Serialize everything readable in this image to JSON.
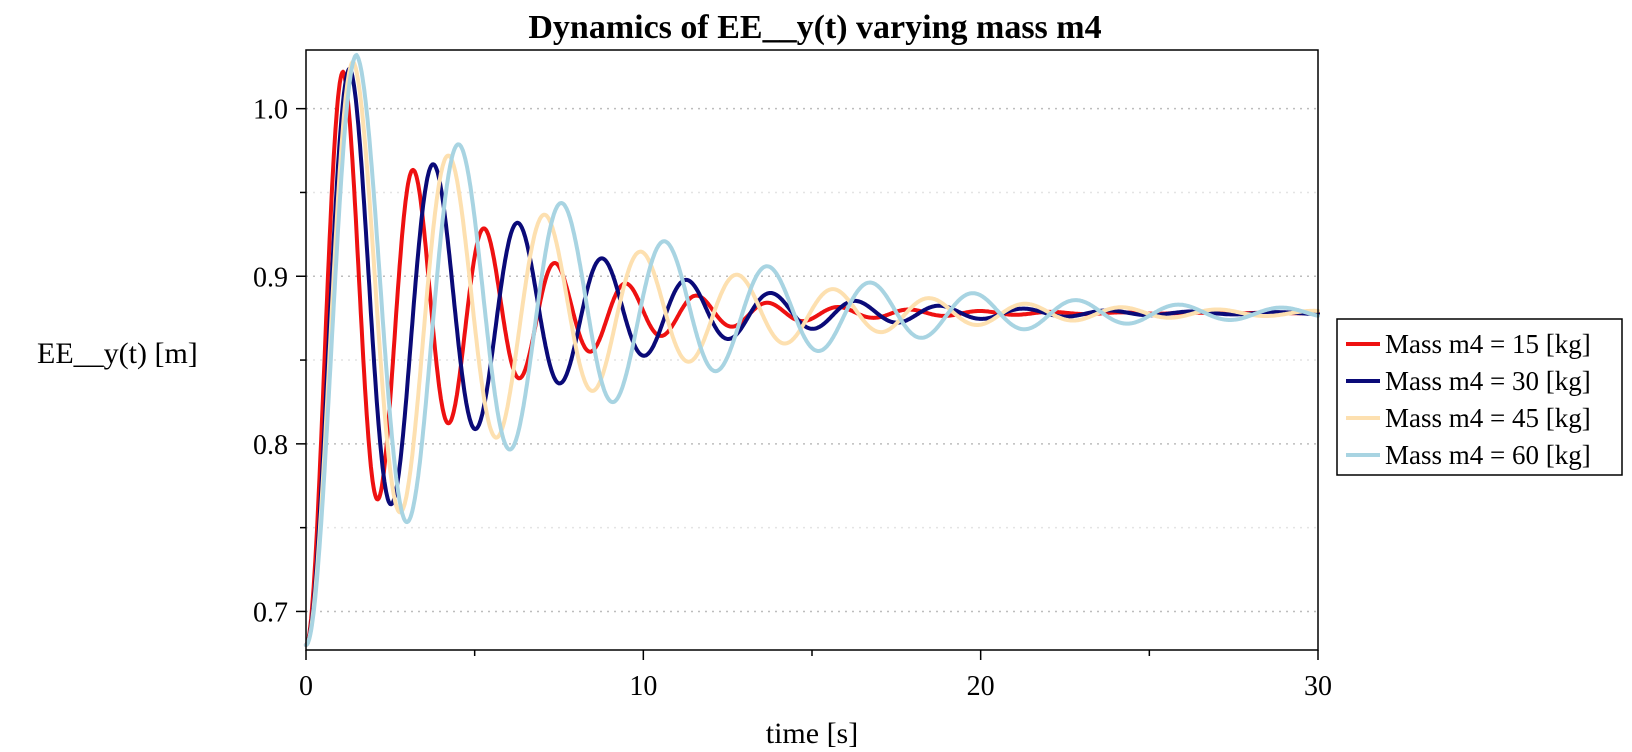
{
  "chart_data": {
    "type": "line",
    "title": "Dynamics of EE__y(t) varying mass m4",
    "xlabel": "time [s]",
    "ylabel": "EE__y(t) [m]",
    "xlim": [
      0,
      30
    ],
    "ylim": [
      0.677,
      1.035
    ],
    "x_ticks": [
      0,
      10,
      20,
      30
    ],
    "x_tick_labels": [
      "0",
      "10",
      "20",
      "30"
    ],
    "x_minor_ticks": [
      5,
      15,
      25
    ],
    "y_ticks": [
      0.7,
      0.8,
      0.9,
      1.0
    ],
    "y_tick_labels": [
      "0.7",
      "0.8",
      "0.9",
      "1.0"
    ],
    "y_minor_ticks": [
      0.75,
      0.85,
      0.95
    ],
    "grid": true,
    "legend_position": "right",
    "series": [
      {
        "name": "Mass m4 = 15 [kg]",
        "color": "#ee1111",
        "model": {
          "y0": 0.68,
          "final": 0.878,
          "first_peak_time": 1.1,
          "first_peak": 1.022,
          "period": 2.1,
          "decay": 0.25
        },
        "peaks": [
          [
            1.1,
            1.022
          ],
          [
            2.0,
            0.764
          ],
          [
            3.2,
            0.96
          ],
          [
            4.2,
            0.812
          ],
          [
            5.3,
            0.926
          ],
          [
            6.3,
            0.84
          ],
          [
            7.4,
            0.906
          ],
          [
            8.4,
            0.856
          ],
          [
            9.5,
            0.894
          ],
          [
            10.5,
            0.865
          ]
        ]
      },
      {
        "name": "Mass m4 = 30 [kg]",
        "color": "#0a0a78",
        "model": {
          "y0": 0.68,
          "final": 0.878,
          "first_peak_time": 1.3,
          "first_peak": 1.024,
          "period": 2.5,
          "decay": 0.2
        },
        "peaks": [
          [
            1.3,
            1.024
          ],
          [
            2.5,
            0.756
          ],
          [
            3.8,
            0.97
          ],
          [
            5.0,
            0.802
          ],
          [
            6.3,
            0.936
          ],
          [
            7.5,
            0.832
          ],
          [
            8.8,
            0.914
          ],
          [
            10.0,
            0.85
          ],
          [
            11.3,
            0.9
          ],
          [
            12.5,
            0.86
          ]
        ]
      },
      {
        "name": "Mass m4 = 45 [kg]",
        "color": "#fde0b0",
        "model": {
          "y0": 0.68,
          "final": 0.878,
          "first_peak_time": 1.4,
          "first_peak": 1.028,
          "period": 2.85,
          "decay": 0.165
        },
        "peaks": [
          [
            1.4,
            1.028
          ],
          [
            2.8,
            0.752
          ],
          [
            4.2,
            0.977
          ],
          [
            5.6,
            0.795
          ],
          [
            7.1,
            0.944
          ],
          [
            8.5,
            0.824
          ],
          [
            9.9,
            0.922
          ],
          [
            11.3,
            0.842
          ],
          [
            12.8,
            0.906
          ],
          [
            14.2,
            0.856
          ]
        ]
      },
      {
        "name": "Mass m4 = 60 [kg]",
        "color": "#a8d4e2",
        "model": {
          "y0": 0.68,
          "final": 0.878,
          "first_peak_time": 1.5,
          "first_peak": 1.032,
          "period": 3.05,
          "decay": 0.14
        },
        "peaks": [
          [
            1.5,
            1.032
          ],
          [
            3.0,
            0.744
          ],
          [
            4.5,
            0.982
          ],
          [
            6.1,
            0.788
          ],
          [
            7.6,
            0.95
          ],
          [
            9.1,
            0.812
          ],
          [
            10.6,
            0.926
          ],
          [
            12.2,
            0.838
          ],
          [
            13.7,
            0.91
          ],
          [
            15.2,
            0.85
          ]
        ]
      }
    ]
  }
}
